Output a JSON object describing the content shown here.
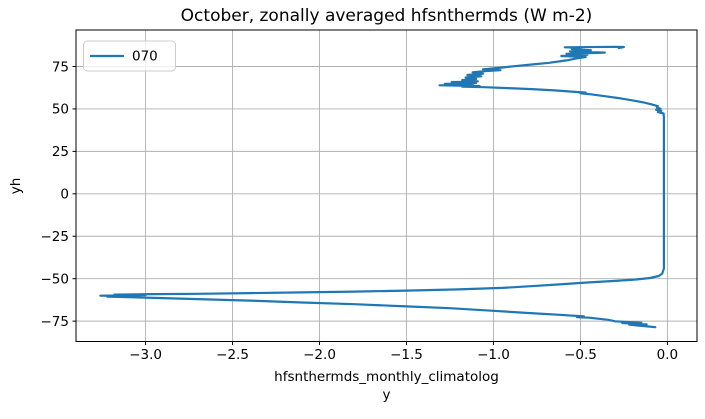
{
  "figure": {
    "background": "#ffffff",
    "legend": {
      "position": "upper left",
      "entries": [
        {
          "label": "070",
          "color": "#1f77b4"
        }
      ]
    }
  },
  "chart_data": {
    "type": "line",
    "title": "October, zonally averaged hfsnthermds (W m-2)",
    "xlabel_line1": "hfsnthermds_monthly_climatolog",
    "xlabel_line2": "y",
    "ylabel": "yh",
    "xlim": [
      -3.4,
      0.17
    ],
    "ylim": [
      -87,
      96.5
    ],
    "grid": true,
    "grid_color": "#b0b0b0",
    "spine_color": "#000000",
    "xticks": [
      {
        "v": -3.0,
        "label": "−3.0"
      },
      {
        "v": -2.5,
        "label": "−2.5"
      },
      {
        "v": -2.0,
        "label": "−2.0"
      },
      {
        "v": -1.5,
        "label": "−1.5"
      },
      {
        "v": -1.0,
        "label": "−1.0"
      },
      {
        "v": -0.5,
        "label": "−0.5"
      },
      {
        "v": 0.0,
        "label": "0.0"
      }
    ],
    "yticks": [
      {
        "v": -75,
        "label": "−75"
      },
      {
        "v": -50,
        "label": "−50"
      },
      {
        "v": -25,
        "label": "−25"
      },
      {
        "v": 0,
        "label": "0"
      },
      {
        "v": 25,
        "label": "25"
      },
      {
        "v": 50,
        "label": "50"
      },
      {
        "v": 75,
        "label": "75"
      }
    ],
    "series": [
      {
        "name": "070",
        "color": "#1f77b4",
        "points": [
          [
            -0.07,
            -78.6
          ],
          [
            -0.1,
            -78.2
          ],
          [
            -0.22,
            -77.1
          ],
          [
            -0.12,
            -76.9
          ],
          [
            -0.26,
            -76.1
          ],
          [
            -0.15,
            -75.9
          ],
          [
            -0.3,
            -75.1
          ],
          [
            -0.34,
            -74.2
          ],
          [
            -0.45,
            -73.0
          ],
          [
            -0.52,
            -72.6
          ],
          [
            -0.48,
            -72.2
          ],
          [
            -0.62,
            -71.3
          ],
          [
            -0.8,
            -70.2
          ],
          [
            -1.0,
            -68.9
          ],
          [
            -1.25,
            -67.4
          ],
          [
            -1.5,
            -66.3
          ],
          [
            -1.8,
            -65.0
          ],
          [
            -2.1,
            -64.0
          ],
          [
            -2.4,
            -62.9
          ],
          [
            -2.7,
            -62.0
          ],
          [
            -2.95,
            -61.3
          ],
          [
            -3.1,
            -60.9
          ],
          [
            -3.22,
            -60.6
          ],
          [
            -3.05,
            -60.3
          ],
          [
            -3.26,
            -60.0
          ],
          [
            -3.0,
            -59.7
          ],
          [
            -3.18,
            -59.4
          ],
          [
            -2.95,
            -59.1
          ],
          [
            -2.7,
            -58.9
          ],
          [
            -2.4,
            -58.5
          ],
          [
            -2.1,
            -58.1
          ],
          [
            -1.8,
            -57.6
          ],
          [
            -1.5,
            -57.0
          ],
          [
            -1.2,
            -56.3
          ],
          [
            -0.95,
            -55.4
          ],
          [
            -0.75,
            -54.2
          ],
          [
            -0.6,
            -53.2
          ],
          [
            -0.45,
            -52.2
          ],
          [
            -0.3,
            -51.3
          ],
          [
            -0.18,
            -50.5
          ],
          [
            -0.1,
            -49.6
          ],
          [
            -0.05,
            -48.4
          ],
          [
            -0.03,
            -47.0
          ],
          [
            -0.02,
            -44.0
          ],
          [
            -0.02,
            -30.0
          ],
          [
            -0.02,
            -10.0
          ],
          [
            -0.02,
            10.0
          ],
          [
            -0.02,
            25.0
          ],
          [
            -0.02,
            40.0
          ],
          [
            -0.02,
            45.0
          ],
          [
            -0.022,
            47.3
          ],
          [
            -0.055,
            48.2
          ],
          [
            -0.035,
            48.9
          ],
          [
            -0.065,
            49.5
          ],
          [
            -0.04,
            50.1
          ],
          [
            -0.06,
            50.8
          ],
          [
            -0.055,
            51.6
          ],
          [
            -0.09,
            52.7
          ],
          [
            -0.14,
            53.9
          ],
          [
            -0.2,
            55.0
          ],
          [
            -0.28,
            56.4
          ],
          [
            -0.36,
            57.5
          ],
          [
            -0.44,
            58.6
          ],
          [
            -0.5,
            59.2
          ],
          [
            -0.47,
            59.6
          ],
          [
            -0.55,
            60.2
          ],
          [
            -0.65,
            60.9
          ],
          [
            -0.78,
            61.7
          ],
          [
            -0.92,
            62.3
          ],
          [
            -1.05,
            62.8
          ],
          [
            -1.18,
            63.1
          ],
          [
            -1.08,
            63.5
          ],
          [
            -1.31,
            63.9
          ],
          [
            -1.12,
            64.3
          ],
          [
            -1.28,
            64.8
          ],
          [
            -1.1,
            65.3
          ],
          [
            -1.24,
            65.8
          ],
          [
            -1.09,
            66.3
          ],
          [
            -1.18,
            67.0
          ],
          [
            -1.1,
            67.7
          ],
          [
            -1.16,
            68.5
          ],
          [
            -1.07,
            69.2
          ],
          [
            -1.15,
            70.0
          ],
          [
            -1.06,
            70.8
          ],
          [
            -1.12,
            71.6
          ],
          [
            -1.05,
            72.3
          ],
          [
            -0.96,
            72.8
          ],
          [
            -1.06,
            73.3
          ],
          [
            -0.97,
            74.2
          ],
          [
            -0.88,
            75.2
          ],
          [
            -0.78,
            76.2
          ],
          [
            -0.68,
            77.2
          ],
          [
            -0.58,
            78.6
          ],
          [
            -0.52,
            79.8
          ],
          [
            -0.47,
            80.6
          ],
          [
            -0.61,
            81.2
          ],
          [
            -0.46,
            81.9
          ],
          [
            -0.58,
            82.5
          ],
          [
            -0.36,
            83.2
          ],
          [
            -0.56,
            83.9
          ],
          [
            -0.44,
            84.6
          ],
          [
            -0.55,
            85.3
          ],
          [
            -0.5,
            86.0
          ],
          [
            -0.59,
            86.3
          ],
          [
            -0.3,
            86.6
          ],
          [
            -0.25,
            86.5
          ],
          [
            -0.28,
            85.9
          ]
        ]
      }
    ]
  }
}
